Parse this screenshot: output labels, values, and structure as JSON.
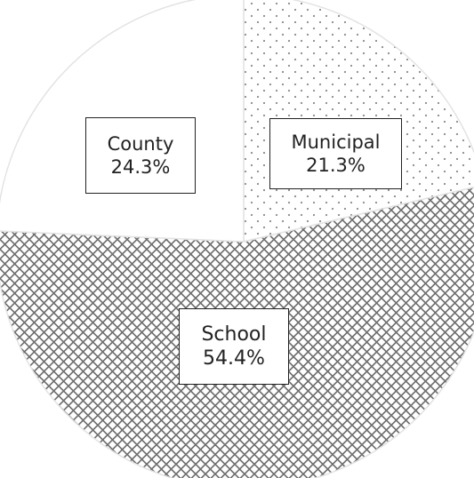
{
  "chart_data": {
    "type": "pie",
    "slices": [
      {
        "label": "Municipal",
        "value": 21.3,
        "value_label": "21.3%",
        "pattern": "dots"
      },
      {
        "label": "School",
        "value": 54.4,
        "value_label": "54.4%",
        "pattern": "crosshatch"
      },
      {
        "label": "County",
        "value": 24.3,
        "value_label": "24.3%",
        "pattern": "solid-white"
      }
    ],
    "start_angle_deg": 0,
    "direction": "clockwise",
    "legend": "none",
    "colors": {
      "fill": "#ffffff",
      "pattern_ink": "#777777",
      "edge": "#e3e3e3",
      "label_border": "#222222"
    }
  }
}
